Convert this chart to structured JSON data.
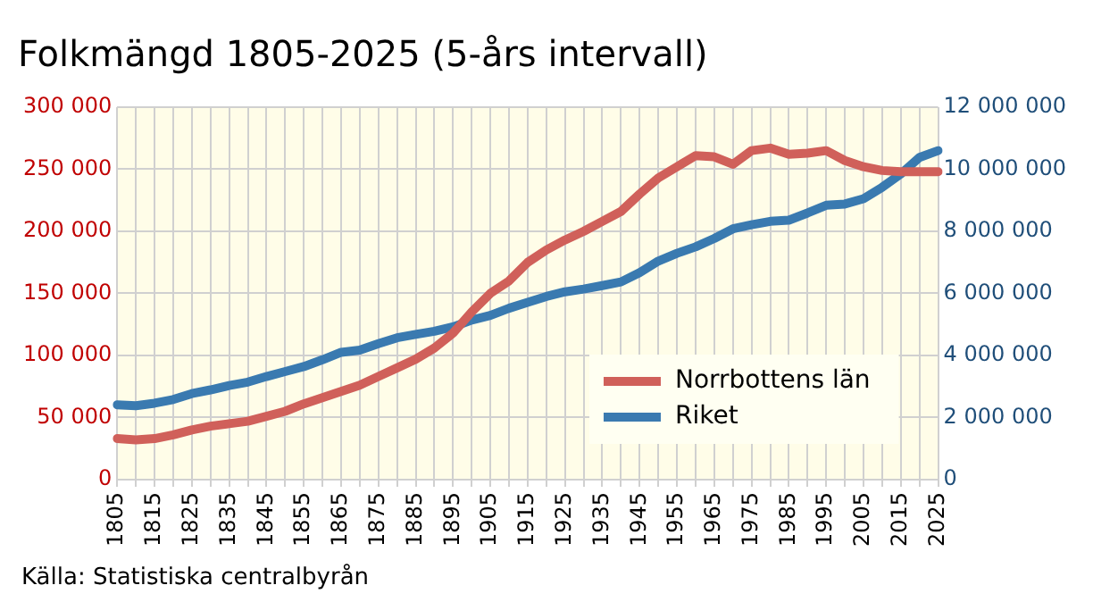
{
  "chart_data": {
    "type": "line",
    "title": "Folkmängd 1805-2025 (5-års intervall)",
    "categories": [
      "1805",
      null,
      "1815",
      null,
      "1825",
      null,
      "1835",
      null,
      "1845",
      null,
      "1855",
      null,
      "1865",
      null,
      "1875",
      null,
      "1885",
      null,
      "1895",
      null,
      "1905",
      null,
      "1915",
      null,
      "1925",
      null,
      "1935",
      null,
      "1945",
      null,
      "1955",
      null,
      "1965",
      null,
      "1975",
      null,
      "1985",
      null,
      "1995",
      null,
      "2005",
      null,
      "2015",
      null,
      "2025"
    ],
    "series": [
      {
        "name": "Norrbottens län",
        "color": "#d0605a",
        "values": [
          33000,
          32000,
          33000,
          36000,
          40000,
          43000,
          45000,
          47000,
          51000,
          55000,
          61000,
          66000,
          71000,
          76000,
          83000,
          90000,
          97000,
          106000,
          118000,
          135000,
          150000,
          160000,
          175000,
          185000,
          193000,
          200000,
          208000,
          216000,
          230000,
          243000,
          252000,
          261000,
          260000,
          254000,
          265000,
          267000,
          262000,
          263000,
          265000,
          257000,
          252000,
          249000,
          248000,
          248000,
          248000
        ]
      },
      {
        "name": "Riket",
        "color": "#3a7ab0",
        "axis": "y2",
        "values": [
          2410000,
          2380000,
          2460000,
          2580000,
          2770000,
          2890000,
          3030000,
          3140000,
          3320000,
          3480000,
          3640000,
          3860000,
          4100000,
          4170000,
          4380000,
          4570000,
          4680000,
          4780000,
          4920000,
          5140000,
          5290000,
          5520000,
          5710000,
          5900000,
          6050000,
          6140000,
          6250000,
          6370000,
          6670000,
          7040000,
          7290000,
          7500000,
          7770000,
          8080000,
          8210000,
          8320000,
          8360000,
          8590000,
          8840000,
          8880000,
          9050000,
          9420000,
          9850000,
          10380000,
          10600000
        ]
      }
    ],
    "ylim": [
      0,
      300000
    ],
    "yticks": [
      0,
      {
        "value": 50000,
        "label": "50 000"
      },
      {
        "value": 100000,
        "label": "100 000"
      },
      {
        "value": 150000,
        "label": "150 000"
      },
      {
        "value": 200000,
        "label": "200 000"
      },
      {
        "value": 250000,
        "label": "250 000"
      },
      {
        "value": 300000,
        "label": "300 000"
      }
    ],
    "y2lim": [
      0,
      12000000
    ],
    "y2ticks": [
      0,
      {
        "value": 2000000,
        "label": "2 000 000"
      },
      {
        "value": 4000000,
        "label": "4 000 000"
      },
      {
        "value": 6000000,
        "label": "6 000 000"
      },
      {
        "value": 8000000,
        "label": "8 000 000"
      },
      {
        "value": 10000000,
        "label": "10 000 000"
      },
      {
        "value": 12000000,
        "label": "12 000 000"
      }
    ],
    "grid": true,
    "legend": "bottom right",
    "marker": "none",
    "line_style": "solid",
    "annotations": [
      "Källa: Statistiska centralbyrån"
    ]
  }
}
